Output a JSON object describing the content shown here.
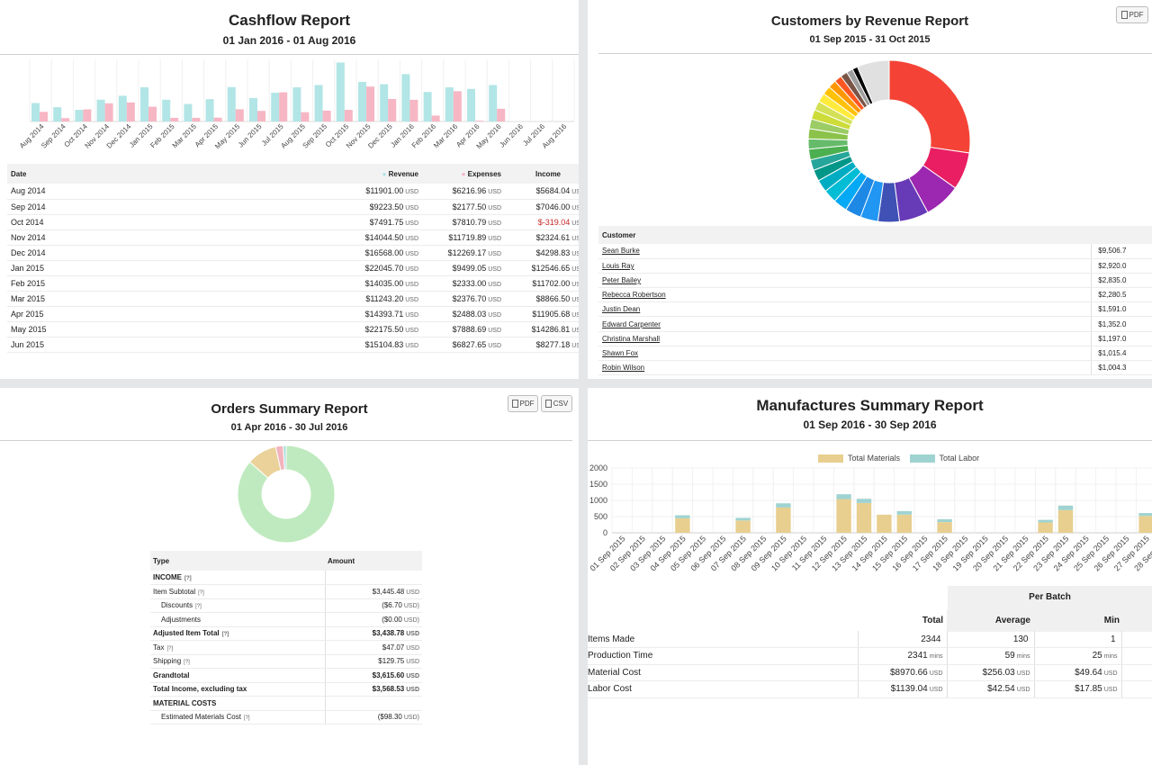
{
  "cashflow": {
    "title": "Cashflow Report",
    "date_range": "01 Jan 2016 - 01 Aug 2016",
    "colors": {
      "revenue": "#b2e5e6",
      "expenses": "#f7b6c4"
    },
    "chart_data": {
      "type": "bar",
      "categories": [
        "Aug 2014",
        "Sep 2014",
        "Oct 2014",
        "Nov 2014",
        "Dec 2014",
        "Jan 2015",
        "Feb 2015",
        "Mar 2015",
        "Apr 2015",
        "May 2015",
        "Jun 2015",
        "Jul 2015",
        "Aug 2015",
        "Sep 2015",
        "Oct 2015",
        "Nov 2015",
        "Dec 2015",
        "Jan 2016",
        "Feb 2016",
        "Mar 2016",
        "Apr 2016",
        "May 2016",
        "Jun 2016",
        "Jul 2016",
        "Aug 2016"
      ],
      "series": [
        {
          "name": "Revenue",
          "values": [
            11901.0,
            9223.5,
            7491.75,
            14044.5,
            16568.0,
            22045.7,
            14035.0,
            11243.2,
            14393.71,
            22175.5,
            15104.83,
            18500,
            22000,
            23500,
            38000,
            25500,
            24000,
            30500,
            19000,
            22000,
            21000,
            23500,
            0,
            0,
            0
          ]
        },
        {
          "name": "Expenses",
          "values": [
            6216.96,
            2177.5,
            7810.79,
            11719.89,
            12269.17,
            9499.05,
            2333.0,
            2376.7,
            2488.03,
            7888.69,
            6827.65,
            18800,
            6000,
            7000,
            7500,
            22500,
            14500,
            14000,
            3800,
            19500,
            500,
            8200,
            0,
            0,
            0
          ]
        }
      ]
    },
    "table": {
      "headers": {
        "date": "Date",
        "revenue": "Revenue",
        "expenses": "Expenses",
        "income": "Income"
      },
      "currency": "USD",
      "rows": [
        {
          "date": "Aug 2014",
          "revenue": "$11901.00",
          "expenses": "$6216.96",
          "income": "$5684.04"
        },
        {
          "date": "Sep 2014",
          "revenue": "$9223.50",
          "expenses": "$2177.50",
          "income": "$7046.00"
        },
        {
          "date": "Oct 2014",
          "revenue": "$7491.75",
          "expenses": "$7810.79",
          "income": "$-319.04"
        },
        {
          "date": "Nov 2014",
          "revenue": "$14044.50",
          "expenses": "$11719.89",
          "income": "$2324.61"
        },
        {
          "date": "Dec 2014",
          "revenue": "$16568.00",
          "expenses": "$12269.17",
          "income": "$4298.83"
        },
        {
          "date": "Jan 2015",
          "revenue": "$22045.70",
          "expenses": "$9499.05",
          "income": "$12546.65"
        },
        {
          "date": "Feb 2015",
          "revenue": "$14035.00",
          "expenses": "$2333.00",
          "income": "$11702.00"
        },
        {
          "date": "Mar 2015",
          "revenue": "$11243.20",
          "expenses": "$2376.70",
          "income": "$8866.50"
        },
        {
          "date": "Apr 2015",
          "revenue": "$14393.71",
          "expenses": "$2488.03",
          "income": "$11905.68"
        },
        {
          "date": "May 2015",
          "revenue": "$22175.50",
          "expenses": "$7888.69",
          "income": "$14286.81"
        },
        {
          "date": "Jun 2015",
          "revenue": "$15104.83",
          "expenses": "$6827.65",
          "income": "$8277.18"
        }
      ]
    }
  },
  "customers": {
    "title": "Customers by Revenue Report",
    "date_range": "01 Sep 2015 - 31 Oct 2015",
    "pdf_label": "PDF",
    "chart_data": {
      "type": "pie",
      "values": [
        25.5,
        7.0,
        6.8,
        5.5,
        4.0,
        3.3,
        3.0,
        2.6,
        2.5,
        2.3,
        2.1,
        2.0,
        2.0,
        1.9,
        1.9,
        1.8,
        1.8,
        1.7,
        1.7,
        1.6,
        1.5,
        1.4,
        1.3,
        1.2,
        1.0,
        6.0
      ],
      "colors": [
        "#f44336",
        "#e91e63",
        "#9c27b0",
        "#673ab7",
        "#3f51b5",
        "#2196f3",
        "#1e88e5",
        "#03a9f4",
        "#00bcd4",
        "#00acc1",
        "#009688",
        "#26a69a",
        "#4caf50",
        "#66bb6a",
        "#8bc34a",
        "#9ccc65",
        "#cddc39",
        "#d4e157",
        "#ffeb3b",
        "#ffc107",
        "#ff9800",
        "#ff5722",
        "#795548",
        "#9e9e9e",
        "#000000",
        "#e0e0e0"
      ]
    },
    "table": {
      "headers": {
        "customer": "Customer",
        "revenue": "Re"
      },
      "rows": [
        {
          "name": "Sean Burke",
          "amount": "$9,506.7"
        },
        {
          "name": "Louis Ray",
          "amount": "$2,920.0"
        },
        {
          "name": "Peter Bailey",
          "amount": "$2,835.0"
        },
        {
          "name": "Rebecca Robertson",
          "amount": "$2,280.5"
        },
        {
          "name": "Justin Dean",
          "amount": "$1,591.0"
        },
        {
          "name": "Edward Carpenter",
          "amount": "$1,352.0"
        },
        {
          "name": "Christina Marshall",
          "amount": "$1,197.0"
        },
        {
          "name": "Shawn Fox",
          "amount": "$1,015.4"
        },
        {
          "name": "Robin Wilson",
          "amount": "$1,004.3"
        }
      ]
    }
  },
  "orders": {
    "title": "Orders Summary Report",
    "date_range": "01 Apr 2016 - 30 Jul 2016",
    "pdf_label": "PDF",
    "csv_label": "CSV",
    "chart_data": {
      "type": "pie",
      "values": [
        86.5,
        10.0,
        2.5,
        1.0
      ],
      "colors": [
        "#bfeabf",
        "#ead29a",
        "#f2b3be",
        "#a6dcd8"
      ]
    },
    "table": {
      "headers": {
        "type": "Type",
        "amount": "Amount"
      },
      "help": "[?]",
      "rows": [
        {
          "label": "INCOME",
          "amount": "",
          "currency": "",
          "style": "section",
          "help": true
        },
        {
          "label": "Item Subtotal",
          "amount": "$3,445.48",
          "currency": "USD",
          "style": "",
          "help": true
        },
        {
          "label": "Discounts",
          "amount": "($6.70",
          "currency": "USD)",
          "style": "ind",
          "help": true
        },
        {
          "label": "Adjustments",
          "amount": "($0.00",
          "currency": "USD)",
          "style": "ind",
          "help": false
        },
        {
          "label": "Adjusted Item Total",
          "amount": "$3,438.78",
          "currency": "USD",
          "style": "bold topline",
          "help": true
        },
        {
          "label": "Tax",
          "amount": "$47.07",
          "currency": "USD",
          "style": "",
          "help": true
        },
        {
          "label": "Shipping",
          "amount": "$129.75",
          "currency": "USD",
          "style": "",
          "help": true
        },
        {
          "label": "Grandtotal",
          "amount": "$3,615.60",
          "currency": "USD",
          "style": "bold topline",
          "help": false
        },
        {
          "label": "Total Income, excluding tax",
          "amount": "$3,568.53",
          "currency": "USD",
          "style": "bold",
          "help": false
        },
        {
          "label": "MATERIAL COSTS",
          "amount": "",
          "currency": "",
          "style": "section",
          "help": false
        },
        {
          "label": "Estimated Materials Cost",
          "amount": "($98.30",
          "currency": "USD)",
          "style": "ind",
          "help": true
        }
      ]
    }
  },
  "manufactures": {
    "title": "Manufactures Summary Report",
    "date_range": "01 Sep 2016 - 30 Sep 2016",
    "colors": {
      "materials": "#e8cf8f",
      "labor": "#9fd3d1"
    },
    "chart_data": {
      "type": "bar",
      "categories": [
        "01 Sep 2015",
        "02 Sep 2015",
        "03 Sep 2015",
        "04 Sep 2015",
        "05 Sep 2015",
        "06 Sep 2015",
        "07 Sep 2015",
        "08 Sep 2015",
        "09 Sep 2015",
        "10 Sep 2015",
        "11 Sep 2015",
        "12 Sep 2015",
        "13 Sep 2015",
        "14 Sep 2015",
        "15 Sep 2015",
        "16 Sep 2015",
        "17 Sep 2015",
        "18 Sep 2015",
        "19 Sep 2015",
        "20 Sep 2015",
        "21 Sep 2015",
        "22 Sep 2015",
        "23 Sep 2015",
        "24 Sep 2015",
        "25 Sep 2015",
        "26 Sep 2015",
        "27 Sep 2015",
        "28 Sep 2015"
      ],
      "series": [
        {
          "name": "Total Materials",
          "values": [
            0,
            0,
            0,
            450,
            0,
            0,
            380,
            0,
            780,
            0,
            0,
            1040,
            920,
            560,
            560,
            0,
            330,
            0,
            0,
            0,
            0,
            320,
            700,
            0,
            0,
            0,
            520,
            0
          ]
        },
        {
          "name": "Total Labor",
          "values": [
            0,
            0,
            0,
            90,
            0,
            0,
            80,
            0,
            130,
            0,
            0,
            150,
            130,
            0,
            110,
            0,
            90,
            0,
            0,
            0,
            0,
            80,
            140,
            0,
            0,
            0,
            90,
            0
          ]
        }
      ],
      "yticks": [
        0,
        500,
        1000,
        1500,
        2000
      ],
      "ylim": [
        0,
        2000
      ],
      "legend": [
        "Total Materials",
        "Total Labor"
      ]
    },
    "table": {
      "group_header": "Per Batch",
      "headers": {
        "total": "Total",
        "average": "Average",
        "min": "Min"
      },
      "rows": [
        {
          "label": "Items Made",
          "total": "2344",
          "total_unit": "",
          "avg": "130",
          "avg_unit": "",
          "min": "1",
          "min_unit": ""
        },
        {
          "label": "Production Time",
          "total": "2341",
          "total_unit": "mins",
          "avg": "59",
          "avg_unit": "mins",
          "min": "25",
          "min_unit": "mins"
        },
        {
          "label": "Material Cost",
          "total": "$8970.66",
          "total_unit": "USD",
          "avg": "$256.03",
          "avg_unit": "USD",
          "min": "$49.64",
          "min_unit": "USD"
        },
        {
          "label": "Labor Cost",
          "total": "$1139.04",
          "total_unit": "USD",
          "avg": "$42.54",
          "avg_unit": "USD",
          "min": "$17.85",
          "min_unit": "USD"
        }
      ]
    }
  }
}
